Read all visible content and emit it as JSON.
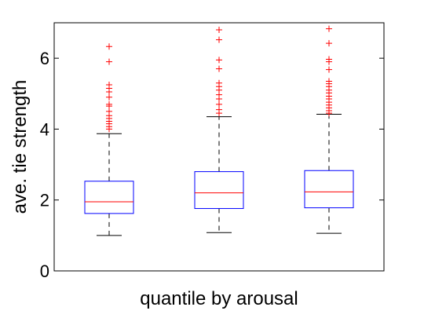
{
  "chart_data": {
    "type": "box",
    "xlabel": "quantile by arousal",
    "ylabel": "ave. tie strength",
    "ylim": [
      0,
      7
    ],
    "yticks": [
      0,
      2,
      4,
      6
    ],
    "grid": false,
    "series": [
      {
        "whisker_low": 1.0,
        "q1": 1.62,
        "median": 1.95,
        "q3": 2.53,
        "whisker_high": 3.87,
        "outliers": [
          4.0,
          4.07,
          4.15,
          4.22,
          4.3,
          4.38,
          4.5,
          4.65,
          4.7,
          4.9,
          5.05,
          5.15,
          5.25,
          5.9,
          6.33
        ]
      },
      {
        "whisker_low": 1.08,
        "q1": 1.76,
        "median": 2.2,
        "q3": 2.8,
        "whisker_high": 4.35,
        "outliers": [
          4.45,
          4.55,
          4.7,
          4.85,
          4.97,
          5.1,
          5.2,
          5.3,
          5.7,
          5.95,
          6.52,
          6.8
        ]
      },
      {
        "whisker_low": 1.06,
        "q1": 1.78,
        "median": 2.23,
        "q3": 2.83,
        "whisker_high": 4.42,
        "outliers": [
          4.45,
          4.52,
          4.6,
          4.68,
          4.76,
          4.85,
          4.93,
          5.02,
          5.1,
          5.2,
          5.28,
          5.35,
          5.68,
          5.9,
          5.97,
          6.42,
          6.83
        ]
      }
    ],
    "colors": {
      "box": "#0000ff",
      "median": "#ff0000",
      "whisker": "#000000",
      "outlier": "#ff0000"
    }
  }
}
